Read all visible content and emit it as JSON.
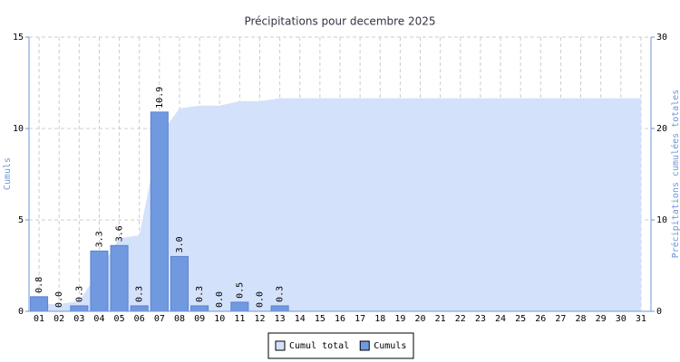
{
  "chart_data": {
    "type": "bar",
    "title": "Précipitations pour decembre 2025",
    "ylabel": "Cumuls",
    "y2label": "Précipitations cumulées totales",
    "categories": [
      "01",
      "02",
      "03",
      "04",
      "05",
      "06",
      "07",
      "08",
      "09",
      "10",
      "11",
      "12",
      "13",
      "14",
      "15",
      "16",
      "17",
      "18",
      "19",
      "20",
      "21",
      "22",
      "23",
      "24",
      "25",
      "26",
      "27",
      "28",
      "29",
      "30",
      "31"
    ],
    "series": [
      {
        "name": "Cumul total",
        "type": "area",
        "axis": "y2",
        "color": "#d3e1fa",
        "values": [
          0.8,
          0.8,
          1.1,
          4.4,
          8.0,
          8.3,
          19.2,
          22.2,
          22.5,
          22.5,
          23.0,
          23.0,
          23.3,
          23.3,
          23.3,
          23.3,
          23.3,
          23.3,
          23.3,
          23.3,
          23.3,
          23.3,
          23.3,
          23.3,
          23.3,
          23.3,
          23.3,
          23.3,
          23.3,
          23.3,
          23.3
        ]
      },
      {
        "name": "Cumuls",
        "type": "bar",
        "color": "#7199e0",
        "values": [
          0.8,
          0,
          0.3,
          3.3,
          3.6,
          0.3,
          10.9,
          3,
          0.3,
          0,
          0.5,
          0,
          0.3,
          null,
          null,
          null,
          null,
          null,
          null,
          null,
          null,
          null,
          null,
          null,
          null,
          null,
          null,
          null,
          null,
          null,
          null
        ],
        "value_labels": [
          "0.8",
          "0.0",
          "0.3",
          "3.3",
          "3.6",
          "0.3",
          "10.9",
          "3.0",
          "0.3",
          "0.0",
          "0.5",
          "0.0",
          "0.3",
          null,
          null,
          null,
          null,
          null,
          null,
          null,
          null,
          null,
          null,
          null,
          null,
          null,
          null,
          null,
          null,
          null,
          null
        ]
      }
    ],
    "ylim": [
      0,
      15
    ],
    "yticks": [
      0,
      5,
      10,
      15
    ],
    "y2lim": [
      0,
      30
    ],
    "y2ticks": [
      0,
      10,
      20,
      30
    ],
    "grid": true,
    "legend": "bottom"
  }
}
